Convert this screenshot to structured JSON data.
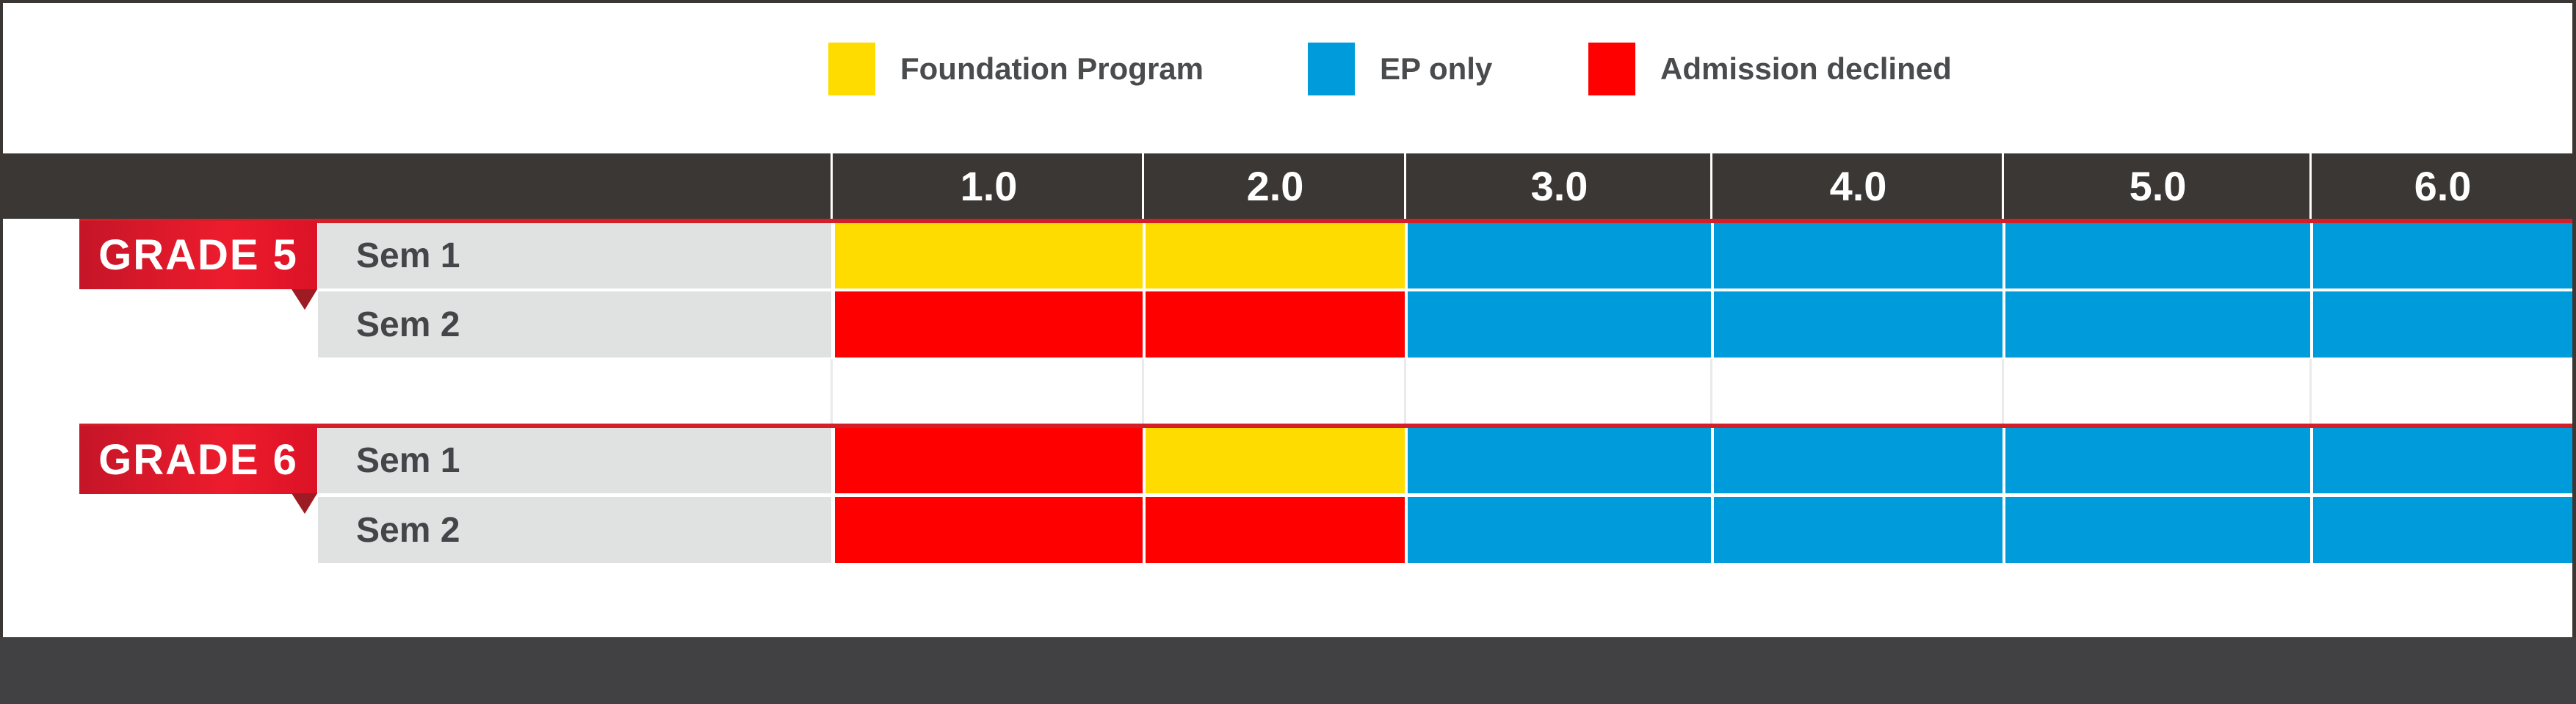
{
  "chart_data": {
    "type": "heatmap",
    "title": "",
    "columns": [
      "1.0",
      "2.0",
      "3.0",
      "4.0",
      "5.0",
      "6.0"
    ],
    "rows": [
      {
        "group": "GRADE 5",
        "label": "Sem 1",
        "cells": [
          "foundation",
          "foundation",
          "ep",
          "ep",
          "ep",
          "ep"
        ]
      },
      {
        "group": "GRADE 5",
        "label": "Sem 2",
        "cells": [
          "declined",
          "declined",
          "ep",
          "ep",
          "ep",
          "ep"
        ]
      },
      {
        "group": "GRADE 6",
        "label": "Sem 1",
        "cells": [
          "declined",
          "foundation",
          "ep",
          "ep",
          "ep",
          "ep"
        ]
      },
      {
        "group": "GRADE 6",
        "label": "Sem 2",
        "cells": [
          "declined",
          "declined",
          "ep",
          "ep",
          "ep",
          "ep"
        ]
      }
    ],
    "legend": [
      {
        "key": "foundation",
        "label": "Foundation Program"
      },
      {
        "key": "ep",
        "label": "EP only"
      },
      {
        "key": "declined",
        "label": "Admission declined"
      }
    ],
    "layout": {
      "legend_position": "top",
      "grid": "off"
    }
  },
  "colors": {
    "frame": "#3b3734",
    "footer": "#414042",
    "row_gray": "#e0e1e1",
    "accent_line": "#d41f28",
    "ribbon_dark": "#c51528",
    "ribbon_bright": "#ed1c2d",
    "triangle": "#9d1b22",
    "foundation": "#ffdc00",
    "ep": "#009bdb",
    "declined": "#ff0000",
    "legend_text": "#4a4b4d",
    "row_label_text": "#434549"
  }
}
